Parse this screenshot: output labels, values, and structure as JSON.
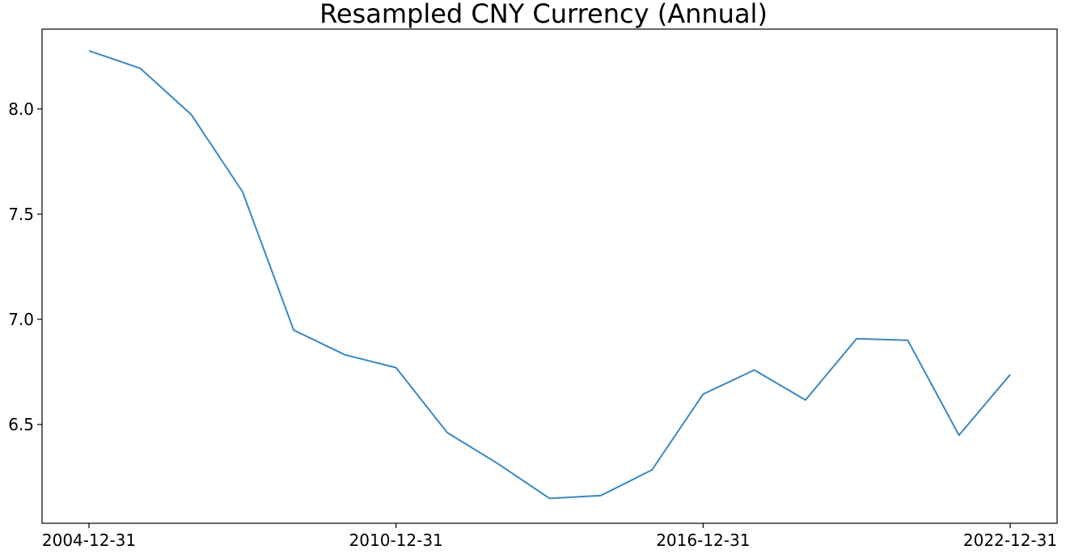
{
  "chart_data": {
    "type": "line",
    "title": "Resampled CNY Currency (Annual)",
    "xlabel": "",
    "ylabel": "",
    "x": [
      "2004-12-31",
      "2005-12-31",
      "2006-12-31",
      "2007-12-31",
      "2008-12-31",
      "2009-12-31",
      "2010-12-31",
      "2011-12-31",
      "2012-12-31",
      "2013-12-31",
      "2014-12-31",
      "2015-12-31",
      "2016-12-31",
      "2017-12-31",
      "2018-12-31",
      "2019-12-31",
      "2020-12-31",
      "2021-12-31",
      "2022-12-31"
    ],
    "series": [
      {
        "values": [
          8.277,
          8.194,
          7.973,
          7.607,
          6.949,
          6.831,
          6.77,
          6.461,
          6.312,
          6.148,
          6.162,
          6.284,
          6.644,
          6.759,
          6.616,
          6.908,
          6.9,
          6.449,
          6.737
        ],
        "color": "#3a87c2"
      }
    ],
    "xticks": [
      "2004-12-31",
      "2010-12-31",
      "2016-12-31",
      "2022-12-31"
    ],
    "yticks": [
      6.5,
      7.0,
      7.5,
      8.0
    ],
    "ytick_labels": [
      "6.5",
      "7.0",
      "7.5",
      "8.0"
    ],
    "ylim": [
      6.03,
      8.38
    ],
    "grid": false,
    "legend": "none"
  }
}
